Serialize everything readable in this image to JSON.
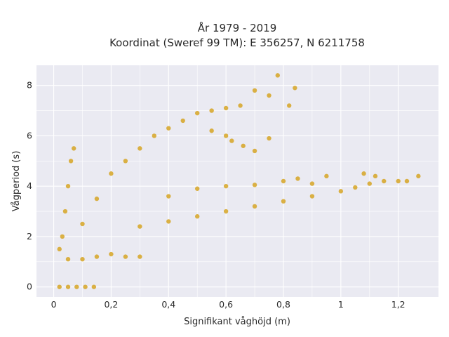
{
  "chart_data": {
    "type": "scatter",
    "title_line1": "År 1979 - 2019",
    "title_line2": "Koordinat (Sweref 99 TM): E 356257, N 6211758",
    "xlabel": "Signifikant våghöjd (m)",
    "ylabel": "Vågperiod (s)",
    "xlim": [
      -0.06,
      1.34
    ],
    "ylim": [
      -0.4,
      8.8
    ],
    "xticks": [
      0,
      0.2,
      0.4,
      0.6,
      0.8,
      1,
      1.2
    ],
    "xtick_labels": [
      "0",
      "0,2",
      "0,4",
      "0,6",
      "0,8",
      "1",
      "1,2"
    ],
    "yticks": [
      0,
      2,
      4,
      6,
      8
    ],
    "ytick_labels": [
      "0",
      "2",
      "4",
      "6",
      "8"
    ],
    "grid": true,
    "legend": "none",
    "colors": {
      "marker": "#d4a017",
      "background": "#eaeaf2",
      "grid": "#ffffff"
    },
    "series": [
      {
        "points": [
          [
            0.02,
            0.0
          ],
          [
            0.05,
            0.0
          ],
          [
            0.08,
            0.0
          ],
          [
            0.11,
            0.0
          ],
          [
            0.14,
            0.0
          ],
          [
            0.02,
            1.5
          ],
          [
            0.03,
            2.0
          ],
          [
            0.04,
            3.0
          ],
          [
            0.05,
            4.0
          ],
          [
            0.06,
            5.0
          ],
          [
            0.07,
            5.5
          ],
          [
            0.05,
            1.1
          ],
          [
            0.1,
            1.1
          ],
          [
            0.15,
            1.2
          ],
          [
            0.2,
            1.3
          ],
          [
            0.25,
            1.2
          ],
          [
            0.3,
            1.2
          ],
          [
            0.1,
            2.5
          ],
          [
            0.15,
            3.5
          ],
          [
            0.2,
            4.5
          ],
          [
            0.25,
            5.0
          ],
          [
            0.3,
            5.5
          ],
          [
            0.35,
            6.0
          ],
          [
            0.4,
            6.3
          ],
          [
            0.45,
            6.6
          ],
          [
            0.5,
            6.9
          ],
          [
            0.55,
            7.0
          ],
          [
            0.6,
            7.1
          ],
          [
            0.65,
            7.2
          ],
          [
            0.7,
            7.8
          ],
          [
            0.75,
            7.6
          ],
          [
            0.78,
            8.4
          ],
          [
            0.82,
            7.2
          ],
          [
            0.84,
            7.9
          ],
          [
            0.55,
            6.2
          ],
          [
            0.6,
            6.0
          ],
          [
            0.62,
            5.8
          ],
          [
            0.66,
            5.6
          ],
          [
            0.7,
            5.4
          ],
          [
            0.75,
            5.9
          ],
          [
            0.3,
            2.4
          ],
          [
            0.4,
            2.6
          ],
          [
            0.5,
            2.8
          ],
          [
            0.6,
            3.0
          ],
          [
            0.7,
            3.2
          ],
          [
            0.8,
            3.4
          ],
          [
            0.9,
            3.6
          ],
          [
            1.0,
            3.8
          ],
          [
            1.05,
            3.95
          ],
          [
            1.1,
            4.1
          ],
          [
            1.15,
            4.2
          ],
          [
            1.2,
            4.2
          ],
          [
            0.6,
            4.0
          ],
          [
            0.7,
            4.05
          ],
          [
            0.8,
            4.2
          ],
          [
            0.85,
            4.3
          ],
          [
            0.95,
            4.4
          ],
          [
            1.08,
            4.5
          ],
          [
            1.12,
            4.4
          ],
          [
            1.23,
            4.2
          ],
          [
            1.27,
            4.4
          ],
          [
            0.4,
            3.6
          ],
          [
            0.5,
            3.9
          ],
          [
            0.9,
            4.1
          ]
        ]
      }
    ]
  }
}
